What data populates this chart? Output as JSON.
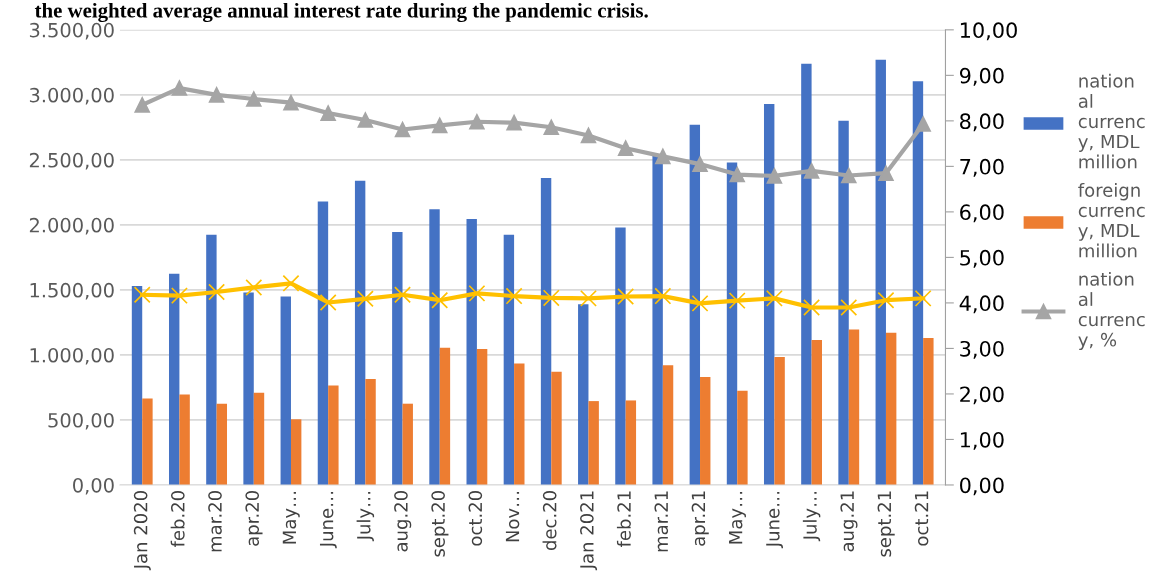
{
  "chart_data": {
    "type": "bar",
    "title": "the weighted average annual interest rate during the pandemic crisis.",
    "categories": [
      "Jan 2020",
      "feb.20",
      "mar.20",
      "apr.20",
      "May…",
      "June…",
      "July…",
      "aug.20",
      "sept.20",
      "oct.20",
      "Nov…",
      "dec.20",
      "Jan 2021",
      "feb.21",
      "mar.21",
      "apr.21",
      "May…",
      "June…",
      "July…",
      "aug.21",
      "sept.21",
      "oct.21"
    ],
    "series": [
      {
        "name": "nation\nal\ncurrenc\ny, MDL\nmillion",
        "color": "#4472c4",
        "values": [
          1530,
          1625,
          1925,
          1480,
          1450,
          2180,
          2340,
          1945,
          2120,
          2045,
          1925,
          2360,
          1390,
          1980,
          2540,
          2770,
          2480,
          2930,
          3240,
          2800,
          3270,
          3105
        ]
      },
      {
        "name": "foreign\ncurrenc\ny, MDL\nmillion",
        "color": "#ed7d31",
        "values": [
          665,
          695,
          625,
          710,
          505,
          765,
          815,
          625,
          1055,
          1045,
          935,
          870,
          645,
          650,
          920,
          830,
          725,
          985,
          1115,
          1195,
          1170,
          1130
        ]
      },
      {
        "name": "nation\nal\ncurrenc\ny, %",
        "type": "line",
        "axis": "y2",
        "marker": "triangle",
        "color": "#a5a5a5",
        "values": [
          8.35,
          8.72,
          8.57,
          8.48,
          8.4,
          8.17,
          8.02,
          7.81,
          7.9,
          7.98,
          7.96,
          7.86,
          7.68,
          7.4,
          7.22,
          7.05,
          6.82,
          6.79,
          6.9,
          6.8,
          6.85,
          7.93
        ]
      },
      {
        "type": "line",
        "axis": "y2",
        "marker": "cross",
        "color": "#ffc000",
        "values": [
          4.18,
          4.16,
          4.24,
          4.34,
          4.43,
          4.01,
          4.09,
          4.18,
          4.06,
          4.21,
          4.15,
          4.11,
          4.1,
          4.14,
          4.15,
          3.99,
          4.05,
          4.1,
          3.9,
          3.9,
          4.06,
          4.1
        ]
      }
    ],
    "ylim": [
      0,
      3500
    ],
    "yticks": [
      {
        "value": 0,
        "label": "0,00"
      },
      {
        "value": 500,
        "label": "500,00"
      },
      {
        "value": 1000,
        "label": "1.000,00"
      },
      {
        "value": 1500,
        "label": "1.500,00"
      },
      {
        "value": 2000,
        "label": "2.000,00"
      },
      {
        "value": 2500,
        "label": "2.500,00"
      },
      {
        "value": 3000,
        "label": "3.000,00"
      },
      {
        "value": 3500,
        "label": "3.500,00"
      }
    ],
    "y2lim": [
      0,
      10
    ],
    "y2ticks": [
      {
        "value": 0,
        "label": "0,00"
      },
      {
        "value": 1,
        "label": "1,00"
      },
      {
        "value": 2,
        "label": "2,00"
      },
      {
        "value": 3,
        "label": "3,00"
      },
      {
        "value": 4,
        "label": "4,00"
      },
      {
        "value": 5,
        "label": "5,00"
      },
      {
        "value": 6,
        "label": "6,00"
      },
      {
        "value": 7,
        "label": "7,00"
      },
      {
        "value": 8,
        "label": "8,00"
      },
      {
        "value": 9,
        "label": "9,00"
      },
      {
        "value": 10,
        "label": "10,00"
      }
    ],
    "grid": "y",
    "legend": "right"
  }
}
